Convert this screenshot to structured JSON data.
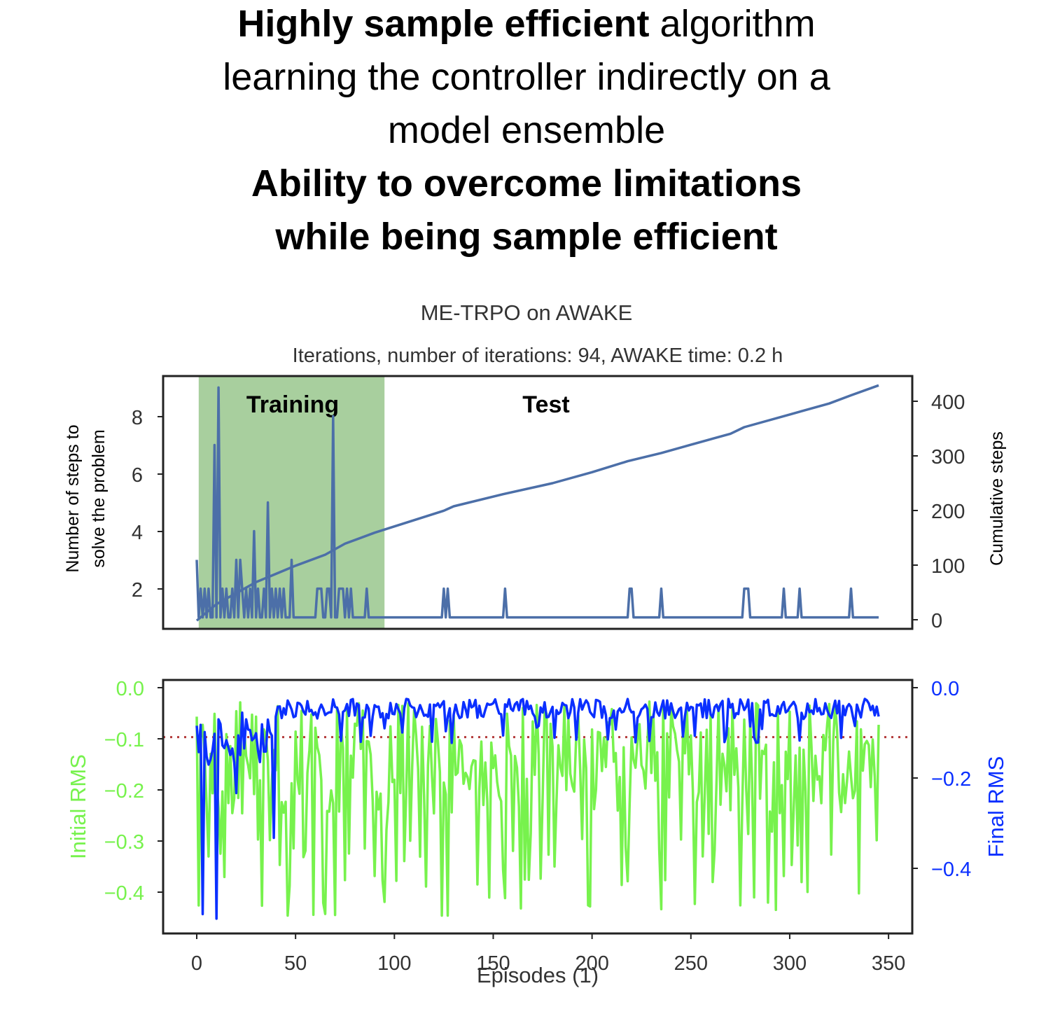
{
  "heading": {
    "line1_bold": "Highly sample efficient",
    "line1_rest": " algorithm",
    "line2": "learning the controller indirectly on a",
    "line3": "model ensemble",
    "line4": "Ability to overcome limitations",
    "line5": "while being sample efficient"
  },
  "colors": {
    "training_region": "#a8cf9e",
    "steps_line": "#4c6fa8",
    "initial_rms": "#77f24d",
    "final_rms": "#0a2fff",
    "threshold": "#b33a3a",
    "axis": "#222222"
  },
  "chart_data": [
    {
      "type": "line",
      "title": "ME-TRPO on AWAKE",
      "subtitle": "Iterations, number of iterations: 94, AWAKE time: 0.2 h",
      "ylabel_left": "Number of steps to solve the problem",
      "ylabel_right": "Cumulative steps",
      "xlim": [
        -17,
        362
      ],
      "ylim_left": [
        0.6,
        9.4
      ],
      "ylim_right": [
        -15,
        445
      ],
      "yticks_left": [
        "2",
        "4",
        "6",
        "8"
      ],
      "yticks_right": [
        "0",
        "100",
        "200",
        "300",
        "400"
      ],
      "annotations": [
        "Training",
        "Test"
      ],
      "training_range": [
        1,
        95
      ],
      "steps_spikes": [
        [
          0,
          3
        ],
        [
          1,
          1
        ],
        [
          2,
          2
        ],
        [
          3,
          1
        ],
        [
          4,
          2
        ],
        [
          5,
          1
        ],
        [
          6,
          2
        ],
        [
          7,
          1
        ],
        [
          8,
          1
        ],
        [
          9,
          7
        ],
        [
          10,
          1
        ],
        [
          11,
          9
        ],
        [
          12,
          1
        ],
        [
          13,
          2
        ],
        [
          14,
          1
        ],
        [
          15,
          2
        ],
        [
          16,
          1
        ],
        [
          17,
          1
        ],
        [
          18,
          2
        ],
        [
          19,
          1
        ],
        [
          20,
          3
        ],
        [
          21,
          1
        ],
        [
          22,
          3
        ],
        [
          23,
          2
        ],
        [
          24,
          1
        ],
        [
          25,
          2
        ],
        [
          26,
          1
        ],
        [
          27,
          2
        ],
        [
          28,
          1
        ],
        [
          29,
          4
        ],
        [
          30,
          1
        ],
        [
          31,
          2
        ],
        [
          32,
          1
        ],
        [
          33,
          1
        ],
        [
          34,
          2
        ],
        [
          35,
          1
        ],
        [
          36,
          5
        ],
        [
          37,
          1
        ],
        [
          38,
          2
        ],
        [
          39,
          1
        ],
        [
          40,
          2
        ],
        [
          41,
          1
        ],
        [
          42,
          2
        ],
        [
          43,
          1
        ],
        [
          44,
          2
        ],
        [
          45,
          1
        ],
        [
          46,
          1
        ],
        [
          47,
          1
        ],
        [
          48,
          3
        ],
        [
          49,
          1
        ],
        [
          55,
          1
        ],
        [
          60,
          1
        ],
        [
          61,
          2
        ],
        [
          62,
          2
        ],
        [
          63,
          2
        ],
        [
          64,
          1
        ],
        [
          65,
          1
        ],
        [
          66,
          2
        ],
        [
          67,
          2
        ],
        [
          68,
          1
        ],
        [
          69,
          8
        ],
        [
          70,
          1
        ],
        [
          71,
          1
        ],
        [
          72,
          2
        ],
        [
          73,
          2
        ],
        [
          74,
          2
        ],
        [
          75,
          1
        ],
        [
          76,
          2
        ],
        [
          77,
          1
        ],
        [
          78,
          2
        ],
        [
          79,
          1
        ],
        [
          84,
          1
        ],
        [
          86,
          2
        ],
        [
          87,
          1
        ],
        [
          124,
          1
        ],
        [
          125,
          2
        ],
        [
          126,
          1
        ],
        [
          127,
          2
        ],
        [
          128,
          1
        ],
        [
          155,
          1
        ],
        [
          156,
          2
        ],
        [
          157,
          1
        ],
        [
          218,
          1
        ],
        [
          219,
          2
        ],
        [
          220,
          2
        ],
        [
          221,
          1
        ],
        [
          234,
          1
        ],
        [
          235,
          2
        ],
        [
          236,
          1
        ],
        [
          276,
          1
        ],
        [
          277,
          2
        ],
        [
          278,
          2
        ],
        [
          279,
          2
        ],
        [
          280,
          1
        ],
        [
          296,
          1
        ],
        [
          297,
          2
        ],
        [
          298,
          1
        ],
        [
          304,
          1
        ],
        [
          305,
          2
        ],
        [
          306,
          1
        ],
        [
          330,
          1
        ],
        [
          331,
          2
        ],
        [
          332,
          1
        ],
        [
          345,
          1
        ]
      ],
      "cumulative_steps": [
        [
          0,
          0
        ],
        [
          10,
          30
        ],
        [
          30,
          70
        ],
        [
          50,
          100
        ],
        [
          65,
          120
        ],
        [
          75,
          140
        ],
        [
          90,
          160
        ],
        [
          125,
          200
        ],
        [
          130,
          208
        ],
        [
          155,
          230
        ],
        [
          180,
          250
        ],
        [
          200,
          270
        ],
        [
          218,
          290
        ],
        [
          235,
          305
        ],
        [
          250,
          320
        ],
        [
          270,
          340
        ],
        [
          277,
          352
        ],
        [
          300,
          375
        ],
        [
          320,
          395
        ],
        [
          331,
          410
        ],
        [
          345,
          428
        ]
      ]
    },
    {
      "type": "line",
      "xlabel": "Episodes (1)",
      "ylabel_left": "Initial RMS",
      "ylabel_right": "Final RMS",
      "xticks": [
        "0",
        "50",
        "100",
        "150",
        "200",
        "250",
        "300",
        "350"
      ],
      "xtick_values": [
        0,
        50,
        100,
        150,
        200,
        250,
        300,
        350
      ],
      "xlim": [
        -17,
        362
      ],
      "ylim_left": [
        -0.485,
        0.012
      ],
      "ylim_right": [
        -0.543,
        0.022
      ],
      "yticks_left": [
        "0.0",
        "−0.1",
        "−0.2",
        "−0.3",
        "−0.4"
      ],
      "yticks_right": [
        "0.0",
        "−0.2",
        "−0.4"
      ],
      "threshold": -0.1,
      "series": [
        {
          "name": "Initial RMS",
          "x_start": 0,
          "x_end": 345,
          "points": 346
        },
        {
          "name": "Final RMS",
          "x_start": 0,
          "x_end": 345,
          "points": 346
        }
      ]
    }
  ]
}
